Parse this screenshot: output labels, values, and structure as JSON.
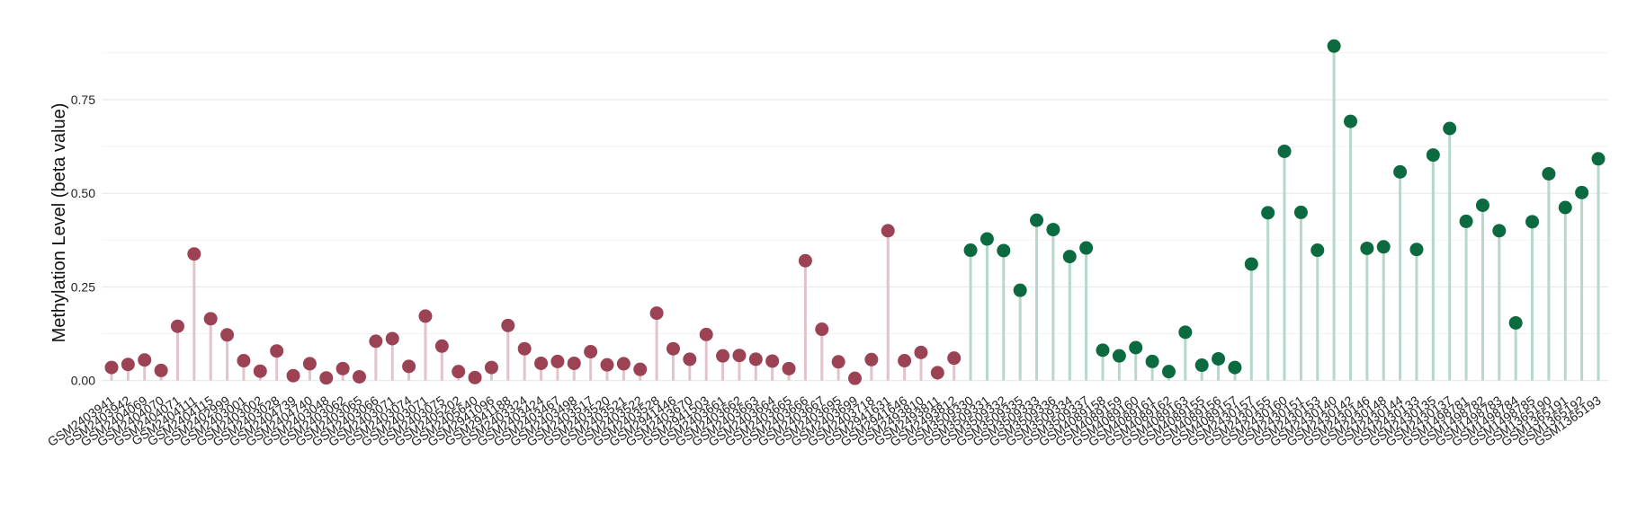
{
  "chart_data": {
    "type": "lollipop",
    "title": "",
    "xlabel": "",
    "ylabel": "Methylation Level (beta value)",
    "ylim": [
      -0.02,
      0.92
    ],
    "yticks": [
      "0.00",
      "0.25",
      "0.50",
      "0.75"
    ],
    "ytick_values": [
      0,
      0.25,
      0.5,
      0.75
    ],
    "grid": "horizontal",
    "legend": "none",
    "colors": {
      "group1_point": "#9B4354",
      "group1_stem": "#E3C3CA",
      "group2_point": "#0B6A3F",
      "group2_stem": "#B6D8C8",
      "grid": "#EBEBEB"
    },
    "categories": [
      "GSM2403941",
      "GSM2403942",
      "GSM2404069",
      "GSM2404070",
      "GSM2404071",
      "GSM2404111",
      "GSM2404115",
      "GSM2402999",
      "GSM2403001",
      "GSM2403002",
      "GSM2403028",
      "GSM2404739",
      "GSM2404740",
      "GSM2403048",
      "GSM2403062",
      "GSM2403065",
      "GSM2403066",
      "GSM2403071",
      "GSM2403074",
      "GSM2403071",
      "GSM2403075",
      "GSM2405202",
      "GSM2405640",
      "GSM2941096",
      "GSM2941188",
      "GSM2403324",
      "GSM2403424",
      "GSM2403467",
      "GSM2403498",
      "GSM2403517",
      "GSM2403520",
      "GSM2403521",
      "GSM2403522",
      "GSM2403528",
      "GSM2941446",
      "GSM2403670",
      "GSM2941503",
      "GSM2403661",
      "GSM2403662",
      "GSM2403663",
      "GSM2403664",
      "GSM2403665",
      "GSM2403666",
      "GSM2403667",
      "GSM2403695",
      "GSM2403699",
      "GSM2403718",
      "GSM2941631",
      "GSM2941646",
      "GSM2493810",
      "GSM2493811",
      "GSM2493812",
      "GSM3509330",
      "GSM3509331",
      "GSM3509332",
      "GSM3509335",
      "GSM3509333",
      "GSM3509336",
      "GSM3509334",
      "GSM3509337",
      "GSM4089158",
      "GSM4089159",
      "GSM4089160",
      "GSM4089161",
      "GSM4089162",
      "GSM4089163",
      "GSM4089155",
      "GSM4089156",
      "GSM4089157",
      "GSM2430157",
      "GSM2430155",
      "GSM2430160",
      "GSM2430151",
      "GSM2430153",
      "GSM2430140",
      "GSM2430142",
      "GSM2430146",
      "GSM2430148",
      "GSM2430144",
      "GSM2430133",
      "GSM2430135",
      "GSM2430137",
      "GSM1498781",
      "GSM1498782",
      "GSM1498783",
      "GSM1498784",
      "GSM1498785",
      "GSM1365190",
      "GSM1365191",
      "GSM1365192",
      "GSM1365193"
    ],
    "values": [
      0.035,
      0.043,
      0.055,
      0.027,
      0.145,
      0.338,
      0.165,
      0.122,
      0.053,
      0.025,
      0.079,
      0.013,
      0.045,
      0.007,
      0.032,
      0.01,
      0.105,
      0.112,
      0.038,
      0.172,
      0.092,
      0.024,
      0.008,
      0.035,
      0.147,
      0.085,
      0.046,
      0.051,
      0.046,
      0.077,
      0.042,
      0.045,
      0.03,
      0.18,
      0.085,
      0.057,
      0.123,
      0.066,
      0.067,
      0.057,
      0.052,
      0.032,
      0.32,
      0.137,
      0.05,
      0.006,
      0.056,
      0.4,
      0.053,
      0.075,
      0.021,
      0.06,
      0.348,
      0.378,
      0.347,
      0.241,
      0.428,
      0.403,
      0.331,
      0.354,
      0.081,
      0.066,
      0.088,
      0.051,
      0.024,
      0.129,
      0.041,
      0.058,
      0.035,
      0.311,
      0.448,
      0.612,
      0.449,
      0.348,
      0.893,
      0.692,
      0.353,
      0.357,
      0.557,
      0.35,
      0.602,
      0.673,
      0.425,
      0.468,
      0.4,
      0.154,
      0.424,
      0.552,
      0.462,
      0.502,
      0.592
    ],
    "groups": [
      1,
      1,
      1,
      1,
      1,
      1,
      1,
      1,
      1,
      1,
      1,
      1,
      1,
      1,
      1,
      1,
      1,
      1,
      1,
      1,
      1,
      1,
      1,
      1,
      1,
      1,
      1,
      1,
      1,
      1,
      1,
      1,
      1,
      1,
      1,
      1,
      1,
      1,
      1,
      1,
      1,
      1,
      1,
      1,
      1,
      1,
      1,
      1,
      1,
      1,
      1,
      1,
      2,
      2,
      2,
      2,
      2,
      2,
      2,
      2,
      2,
      2,
      2,
      2,
      2,
      2,
      2,
      2,
      2,
      2,
      2,
      2,
      2,
      2,
      2,
      2,
      2,
      2,
      2,
      2,
      2,
      2,
      2,
      2,
      2,
      2,
      2,
      2,
      2,
      2,
      2
    ]
  }
}
